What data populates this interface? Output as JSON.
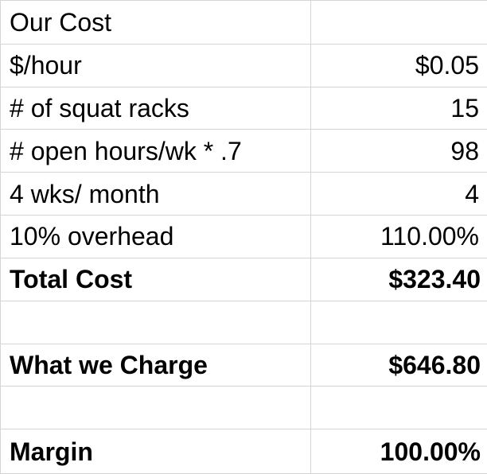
{
  "rows": [
    {
      "label": "Our Cost",
      "value": "",
      "bold": false
    },
    {
      "label": "$/hour",
      "value": "$0.05",
      "bold": false
    },
    {
      "label": "# of squat racks",
      "value": "15",
      "bold": false
    },
    {
      "label": "# open hours/wk * .7",
      "value": "98",
      "bold": false
    },
    {
      "label": "4 wks/ month",
      "value": "4",
      "bold": false
    },
    {
      "label": "10% overhead",
      "value": "110.00%",
      "bold": false
    },
    {
      "label": "Total Cost",
      "value": "$323.40",
      "bold": true
    },
    {
      "label": "",
      "value": "",
      "bold": false
    },
    {
      "label": "What we Charge",
      "value": "$646.80",
      "bold": true
    },
    {
      "label": "",
      "value": "",
      "bold": false
    },
    {
      "label": "Margin",
      "value": "100.00%",
      "bold": true
    }
  ],
  "colors": {
    "gridline": "#d4d4d4",
    "text": "#000000",
    "background": "#ffffff"
  }
}
